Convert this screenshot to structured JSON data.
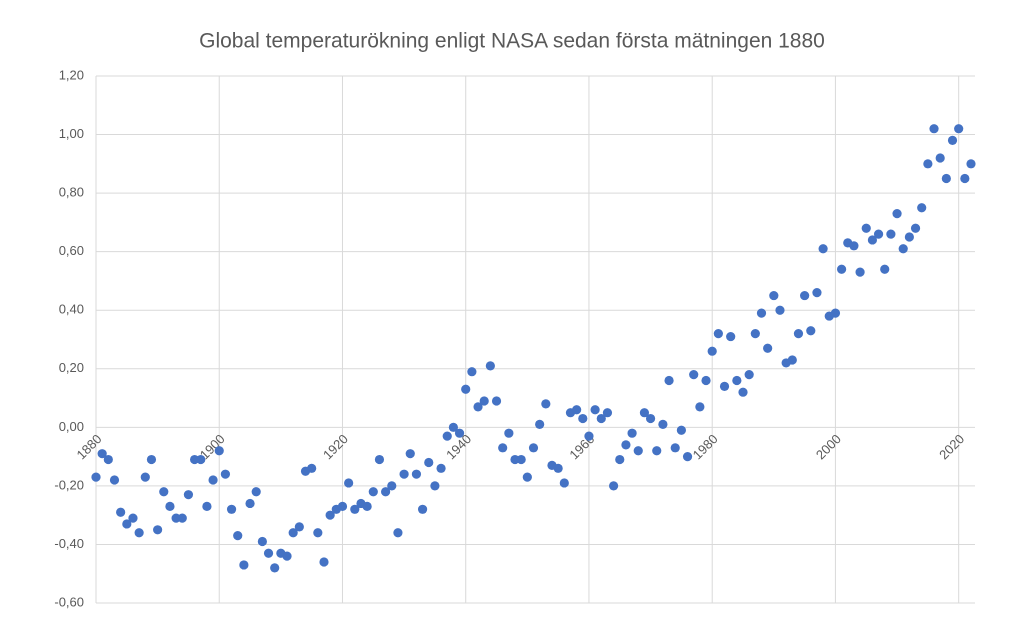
{
  "chart_data": {
    "type": "scatter",
    "title": "Global temperaturökning enligt NASA sedan första mätningen 1880",
    "color": "#4472c4",
    "grid": true,
    "xlim": [
      1880,
      2022
    ],
    "xticks": [
      1880,
      1900,
      1920,
      1940,
      1960,
      1980,
      2000,
      2020
    ],
    "ylim": [
      -0.6,
      1.2
    ],
    "yticks": [
      {
        "value": -0.6,
        "label": "-0,60"
      },
      {
        "value": -0.4,
        "label": "-0,40"
      },
      {
        "value": -0.2,
        "label": "-0,20"
      },
      {
        "value": 0,
        "label": "0,00"
      },
      {
        "value": 0.2,
        "label": "0,20"
      },
      {
        "value": 0.4,
        "label": "0,40"
      },
      {
        "value": 0.6,
        "label": "0,60"
      },
      {
        "value": 0.8,
        "label": "0,80"
      },
      {
        "value": 1.0,
        "label": "1,00"
      },
      {
        "value": 1.2,
        "label": "1,20"
      }
    ],
    "x": [
      1880,
      1881,
      1882,
      1883,
      1884,
      1885,
      1886,
      1887,
      1888,
      1889,
      1890,
      1891,
      1892,
      1893,
      1894,
      1895,
      1896,
      1897,
      1898,
      1899,
      1900,
      1901,
      1902,
      1903,
      1904,
      1905,
      1906,
      1907,
      1908,
      1909,
      1910,
      1911,
      1912,
      1913,
      1914,
      1915,
      1916,
      1917,
      1918,
      1919,
      1920,
      1921,
      1922,
      1923,
      1924,
      1925,
      1926,
      1927,
      1928,
      1929,
      1930,
      1931,
      1932,
      1933,
      1934,
      1935,
      1936,
      1937,
      1938,
      1939,
      1940,
      1941,
      1942,
      1943,
      1944,
      1945,
      1946,
      1947,
      1948,
      1949,
      1950,
      1951,
      1952,
      1953,
      1954,
      1955,
      1956,
      1957,
      1958,
      1959,
      1960,
      1961,
      1962,
      1963,
      1964,
      1965,
      1966,
      1967,
      1968,
      1969,
      1970,
      1971,
      1972,
      1973,
      1974,
      1975,
      1976,
      1977,
      1978,
      1979,
      1980,
      1981,
      1982,
      1983,
      1984,
      1985,
      1986,
      1987,
      1988,
      1989,
      1990,
      1991,
      1992,
      1993,
      1994,
      1995,
      1996,
      1997,
      1998,
      1999,
      2000,
      2001,
      2002,
      2003,
      2004,
      2005,
      2006,
      2007,
      2008,
      2009,
      2010,
      2011,
      2012,
      2013,
      2014,
      2015,
      2016,
      2017,
      2018,
      2019,
      2020,
      2021,
      2022
    ],
    "values": [
      -0.17,
      -0.09,
      -0.11,
      -0.18,
      -0.29,
      -0.33,
      -0.31,
      -0.36,
      -0.17,
      -0.11,
      -0.35,
      -0.22,
      -0.27,
      -0.31,
      -0.31,
      -0.23,
      -0.11,
      -0.11,
      -0.27,
      -0.18,
      -0.08,
      -0.16,
      -0.28,
      -0.37,
      -0.47,
      -0.26,
      -0.22,
      -0.39,
      -0.43,
      -0.48,
      -0.43,
      -0.44,
      -0.36,
      -0.34,
      -0.15,
      -0.14,
      -0.36,
      -0.46,
      -0.3,
      -0.28,
      -0.27,
      -0.19,
      -0.28,
      -0.26,
      -0.27,
      -0.22,
      -0.11,
      -0.22,
      -0.2,
      -0.36,
      -0.16,
      -0.09,
      -0.16,
      -0.28,
      -0.12,
      -0.2,
      -0.14,
      -0.03,
      0.0,
      -0.02,
      0.13,
      0.19,
      0.07,
      0.09,
      0.21,
      0.09,
      -0.07,
      -0.02,
      -0.11,
      -0.11,
      -0.17,
      -0.07,
      0.01,
      0.08,
      -0.13,
      -0.14,
      -0.19,
      0.05,
      0.06,
      0.03,
      -0.03,
      0.06,
      0.03,
      0.05,
      -0.2,
      -0.11,
      -0.06,
      -0.02,
      -0.08,
      0.05,
      0.03,
      -0.08,
      0.01,
      0.16,
      -0.07,
      -0.01,
      -0.1,
      0.18,
      0.07,
      0.16,
      0.26,
      0.32,
      0.14,
      0.31,
      0.16,
      0.12,
      0.18,
      0.32,
      0.39,
      0.27,
      0.45,
      0.4,
      0.22,
      0.23,
      0.32,
      0.45,
      0.33,
      0.46,
      0.61,
      0.38,
      0.39,
      0.54,
      0.63,
      0.62,
      0.53,
      0.68,
      0.64,
      0.66,
      0.54,
      0.66,
      0.73,
      0.61,
      0.65,
      0.68,
      0.75,
      0.9,
      1.02,
      0.92,
      0.85,
      0.98,
      1.02,
      0.85,
      0.9
    ]
  }
}
